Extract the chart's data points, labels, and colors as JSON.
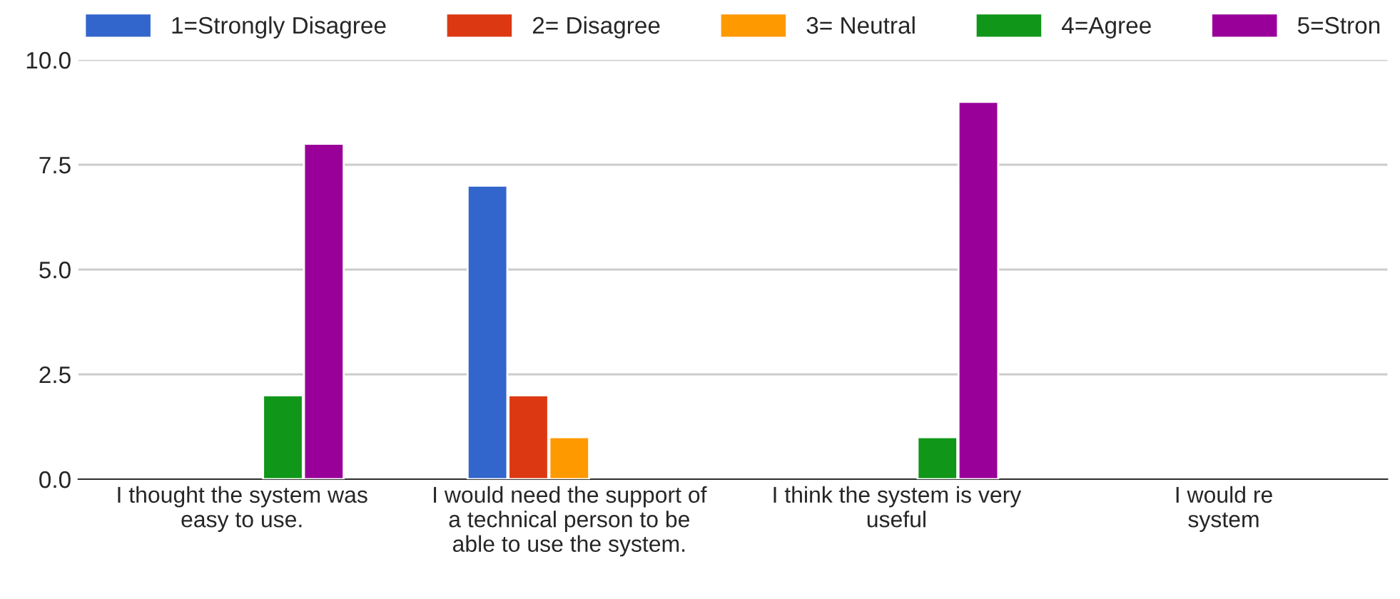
{
  "chart_data": {
    "type": "bar",
    "categories": [
      "I thought the system was\neasy to use.",
      "I would need the support of\na technical person to be\nable to use the system.",
      "I think the system is very\nuseful",
      "I would re\nsystem"
    ],
    "series": [
      {
        "name": "1=Strongly Disagree",
        "color": "#3366cc",
        "values": [
          null,
          7,
          null,
          null
        ]
      },
      {
        "name": "2= Disagree",
        "color": "#dc3912",
        "values": [
          null,
          2,
          null,
          null
        ]
      },
      {
        "name": "3= Neutral",
        "color": "#ff9900",
        "values": [
          null,
          1,
          null,
          null
        ]
      },
      {
        "name": "4=Agree",
        "color": "#109618",
        "values": [
          2,
          null,
          1,
          null
        ]
      },
      {
        "name": "5=Stron",
        "color": "#990099",
        "values": [
          8,
          null,
          9,
          null
        ]
      }
    ],
    "ylim": [
      0,
      10
    ],
    "yticks": [
      {
        "value": 0,
        "label": "0.0"
      },
      {
        "value": 2.5,
        "label": "2.5"
      },
      {
        "value": 5,
        "label": "5.0"
      },
      {
        "value": 7.5,
        "label": "7.5"
      },
      {
        "value": 10,
        "label": "10.0"
      }
    ],
    "grid": "y",
    "legend": "top"
  }
}
